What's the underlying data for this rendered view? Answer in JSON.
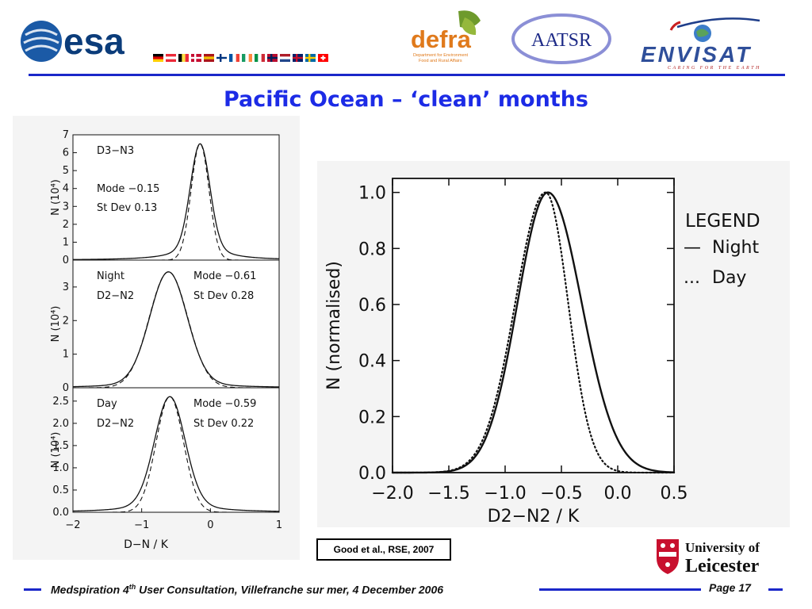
{
  "slide": {
    "title": "Pacific Ocean – ‘clean’ months",
    "citation": "Good et al., RSE, 2007",
    "footer_prefix": "Medspiration 4",
    "footer_sup": "th",
    "footer_suffix": " User Consultation, Villefranche sur mer, 4 December 2006",
    "page": "Page 17"
  },
  "logos": {
    "esa": "esa",
    "defra": "defra",
    "defra_sub1": "Department for Environment",
    "defra_sub2": "Food and Rural Affairs",
    "aatsr": "AATSR",
    "envisat": "ENVISAT",
    "envisat_tagline": "CARING FOR THE EARTH",
    "university_line1": "University of",
    "university_line2": "Leicester"
  },
  "colors": {
    "title": "#1c2be6",
    "rule": "#1a27c9",
    "defra": "#e07a1c",
    "envisat": "#2f4f9a"
  },
  "flags": [
    {
      "name": "germany",
      "colors": [
        "#000000",
        "#dd0000",
        "#ffce00"
      ],
      "dir": "h"
    },
    {
      "name": "austria",
      "colors": [
        "#ed2939",
        "#ffffff",
        "#ed2939"
      ],
      "dir": "h"
    },
    {
      "name": "belgium",
      "colors": [
        "#000000",
        "#fae042",
        "#ed2939"
      ],
      "dir": "v"
    },
    {
      "name": "denmark",
      "colors": [
        "#c60c30",
        "#ffffff"
      ],
      "dir": "cross"
    },
    {
      "name": "spain",
      "colors": [
        "#aa151b",
        "#f1bf00",
        "#aa151b"
      ],
      "dir": "h"
    },
    {
      "name": "finland",
      "colors": [
        "#ffffff",
        "#003580"
      ],
      "dir": "cross"
    },
    {
      "name": "france",
      "colors": [
        "#0055a4",
        "#ffffff",
        "#ef4135"
      ],
      "dir": "v"
    },
    {
      "name": "ireland",
      "colors": [
        "#169b62",
        "#ffffff",
        "#ff883e"
      ],
      "dir": "v"
    },
    {
      "name": "italy",
      "colors": [
        "#009246",
        "#ffffff",
        "#ce2b37"
      ],
      "dir": "v"
    },
    {
      "name": "norway",
      "colors": [
        "#ba0c2f",
        "#00205b"
      ],
      "dir": "cross"
    },
    {
      "name": "netherlands",
      "colors": [
        "#ae1c28",
        "#ffffff",
        "#21468b"
      ],
      "dir": "h"
    },
    {
      "name": "uk",
      "colors": [
        "#012169",
        "#c8102e"
      ],
      "dir": "cross"
    },
    {
      "name": "sweden",
      "colors": [
        "#006aa7",
        "#fecc00"
      ],
      "dir": "cross"
    },
    {
      "name": "switzerland",
      "colors": [
        "#ff0000",
        "#ffffff"
      ],
      "dir": "swiss"
    }
  ],
  "chart_data": [
    {
      "type": "line",
      "panel": "top",
      "label1": "D3−N3",
      "mode_text": "Mode −0.15",
      "sd_text": "St Dev 0.13",
      "ylabel": "N (10⁴)",
      "ylim": [
        0,
        7
      ],
      "yticks": [
        "0",
        "1",
        "2",
        "3",
        "4",
        "5",
        "6",
        "7"
      ],
      "xlim": [
        -2,
        1
      ],
      "series": [
        {
          "style": "solid",
          "peak_x": -0.15,
          "peak_y": 6.5,
          "sigma": 0.14,
          "tail": 0.32,
          "tail_weight": 0.16
        },
        {
          "style": "dashed",
          "peak_x": -0.15,
          "peak_y": 6.5,
          "sigma": 0.13,
          "tail": 0,
          "tail_weight": 0
        }
      ]
    },
    {
      "type": "line",
      "panel": "middle",
      "label1": "Night",
      "label2": "D2−N2",
      "mode_text": "Mode −0.61",
      "sd_text": "St Dev 0.28",
      "ylabel": "N (10⁴)",
      "ylim": [
        0,
        3.8
      ],
      "yticks": [
        "0",
        "1",
        "2",
        "3"
      ],
      "xlim": [
        -2,
        1
      ],
      "series": [
        {
          "style": "solid",
          "peak_x": -0.61,
          "peak_y": 3.45,
          "sigma": 0.27,
          "tail": 0.45,
          "tail_weight": 0.1
        },
        {
          "style": "dashed",
          "peak_x": -0.61,
          "peak_y": 3.45,
          "sigma": 0.28,
          "tail": 0,
          "tail_weight": 0
        }
      ]
    },
    {
      "type": "line",
      "panel": "bottom",
      "label1": "Day",
      "label2": "D2−N2",
      "mode_text": "Mode −0.59",
      "sd_text": "St Dev 0.22",
      "ylabel": "N (10⁴)",
      "xlabel": "D−N / K",
      "ylim": [
        0,
        2.8
      ],
      "yticks": [
        "0.0",
        "0.5",
        "1.0",
        "1.5",
        "2.0",
        "2.5"
      ],
      "xlim": [
        -2,
        1
      ],
      "xticks": [
        "−2",
        "−1",
        "0",
        "1"
      ],
      "series": [
        {
          "style": "solid",
          "peak_x": -0.59,
          "peak_y": 2.6,
          "sigma": 0.22,
          "tail": 0.4,
          "tail_weight": 0.14
        },
        {
          "style": "dashed",
          "peak_x": -0.59,
          "peak_y": 2.6,
          "sigma": 0.2,
          "tail": 0,
          "tail_weight": 0
        }
      ]
    },
    {
      "type": "line",
      "panel": "right",
      "xlabel": "D2−N2 / K",
      "ylabel": "N (normalised)",
      "xlim": [
        -2.0,
        0.5
      ],
      "ylim": [
        0.0,
        1.05
      ],
      "xticks": [
        "−2.0",
        "−1.5",
        "−1.0",
        "−0.5",
        "0.0",
        "0.5"
      ],
      "yticks": [
        "0.0",
        "0.2",
        "0.4",
        "0.6",
        "0.8",
        "1.0"
      ],
      "legend": {
        "title": "LEGEND",
        "items": [
          {
            "symbol": "—",
            "label": "Night"
          },
          {
            "symbol": "...",
            "label": "Day"
          }
        ]
      },
      "series": [
        {
          "name": "Night",
          "style": "solid",
          "peak_x": -0.62,
          "peak_y": 1.0,
          "sigma_left": 0.27,
          "sigma_right": 0.3
        },
        {
          "name": "Day",
          "style": "dotted",
          "peak_x": -0.64,
          "peak_y": 1.0,
          "sigma_left": 0.27,
          "sigma_right": 0.2
        }
      ]
    }
  ]
}
